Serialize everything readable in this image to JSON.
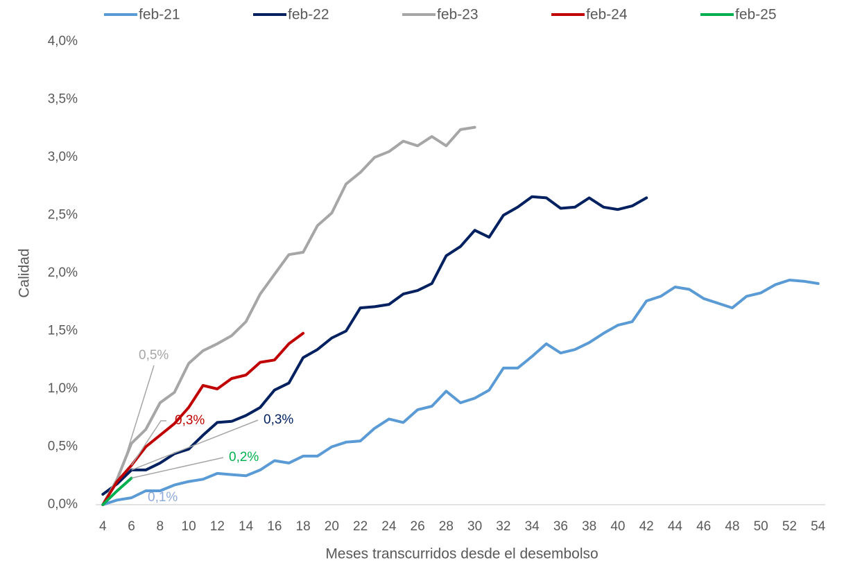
{
  "chart_data": {
    "type": "line",
    "x_label": "Meses transcurridos desde el desembolso",
    "y_label": "Calidad",
    "xlim": [
      3.5,
      54.5
    ],
    "xticks": [
      4,
      6,
      8,
      10,
      12,
      14,
      16,
      18,
      20,
      22,
      24,
      26,
      28,
      30,
      32,
      34,
      36,
      38,
      40,
      42,
      44,
      46,
      48,
      50,
      52,
      54
    ],
    "ylim": [
      0,
      4
    ],
    "yticks": [
      {
        "value": 0,
        "label": "0,0%"
      },
      {
        "value": 0.5,
        "label": "0,5%"
      },
      {
        "value": 1,
        "label": "1,0%"
      },
      {
        "value": 1.5,
        "label": "1,5%"
      },
      {
        "value": 2,
        "label": "2,0%"
      },
      {
        "value": 2.5,
        "label": "2,5%"
      },
      {
        "value": 3,
        "label": "3,0%"
      },
      {
        "value": 3.5,
        "label": "3,5%"
      },
      {
        "value": 4,
        "label": "4,0%"
      }
    ],
    "grid": false,
    "legend": "top",
    "series": [
      {
        "name": "feb-21",
        "color": "#5b9bd5",
        "x": [
          4,
          5,
          6,
          7,
          8,
          9,
          10,
          11,
          12,
          13,
          14,
          15,
          16,
          17,
          18,
          19,
          20,
          21,
          22,
          23,
          24,
          25,
          26,
          27,
          28,
          29,
          30,
          31,
          32,
          33,
          34,
          35,
          36,
          37,
          38,
          39,
          40,
          41,
          42,
          43,
          44,
          45,
          46,
          47,
          48,
          49,
          50,
          51,
          52,
          53,
          54
        ],
        "values": [
          0,
          0.04,
          0.06,
          0.12,
          0.12,
          0.17,
          0.2,
          0.22,
          0.27,
          0.26,
          0.25,
          0.3,
          0.38,
          0.36,
          0.42,
          0.42,
          0.5,
          0.54,
          0.55,
          0.66,
          0.74,
          0.71,
          0.82,
          0.85,
          0.98,
          0.88,
          0.92,
          0.99,
          1.18,
          1.18,
          1.28,
          1.39,
          1.31,
          1.34,
          1.4,
          1.48,
          1.55,
          1.58,
          1.76,
          1.8,
          1.88,
          1.86,
          1.78,
          1.74,
          1.7,
          1.8,
          1.83,
          1.9,
          1.94,
          1.93,
          1.91
        ]
      },
      {
        "name": "feb-22",
        "color": "#002060",
        "x": [
          4,
          5,
          6,
          7,
          8,
          9,
          10,
          11,
          12,
          13,
          14,
          15,
          16,
          17,
          18,
          19,
          20,
          21,
          22,
          23,
          24,
          25,
          26,
          27,
          28,
          29,
          30,
          31,
          32,
          33,
          34,
          35,
          36,
          37,
          38,
          39,
          40,
          41,
          42
        ],
        "values": [
          0.09,
          0.18,
          0.3,
          0.3,
          0.36,
          0.44,
          0.48,
          0.6,
          0.71,
          0.72,
          0.77,
          0.84,
          0.99,
          1.05,
          1.27,
          1.34,
          1.44,
          1.5,
          1.7,
          1.71,
          1.73,
          1.82,
          1.85,
          1.91,
          2.15,
          2.23,
          2.37,
          2.31,
          2.5,
          2.57,
          2.66,
          2.65,
          2.56,
          2.57,
          2.65,
          2.57,
          2.55,
          2.58,
          2.65
        ]
      },
      {
        "name": "feb-23",
        "color": "#a6a6a6",
        "x": [
          4,
          5,
          6,
          7,
          8,
          9,
          10,
          11,
          12,
          13,
          14,
          15,
          16,
          17,
          18,
          19,
          20,
          21,
          22,
          23,
          24,
          25,
          26,
          27,
          28,
          29,
          30
        ],
        "values": [
          0,
          0.22,
          0.53,
          0.65,
          0.88,
          0.97,
          1.22,
          1.33,
          1.39,
          1.46,
          1.58,
          1.82,
          1.99,
          2.16,
          2.18,
          2.41,
          2.52,
          2.77,
          2.87,
          3.0,
          3.05,
          3.14,
          3.1,
          3.18,
          3.1,
          3.24,
          3.26
        ]
      },
      {
        "name": "feb-24",
        "color": "#c00000",
        "x": [
          4,
          5,
          6,
          7,
          8,
          9,
          10,
          11,
          12,
          13,
          14,
          15,
          16,
          17,
          18
        ],
        "values": [
          0,
          0.2,
          0.34,
          0.5,
          0.6,
          0.7,
          0.84,
          1.03,
          1.0,
          1.09,
          1.12,
          1.23,
          1.25,
          1.39,
          1.48
        ]
      },
      {
        "name": "feb-25",
        "color": "#00b050",
        "x": [
          4,
          5,
          6
        ],
        "values": [
          0,
          0.12,
          0.23
        ]
      }
    ],
    "annotations": [
      {
        "text": "0,5%",
        "color": "#a6a6a6"
      },
      {
        "text": "0,3%",
        "color": "#c00000"
      },
      {
        "text": "0,3%",
        "color": "#002060"
      },
      {
        "text": "0,2%",
        "color": "#00b050"
      },
      {
        "text": "0,1%",
        "color": "#8eaadb"
      }
    ]
  }
}
